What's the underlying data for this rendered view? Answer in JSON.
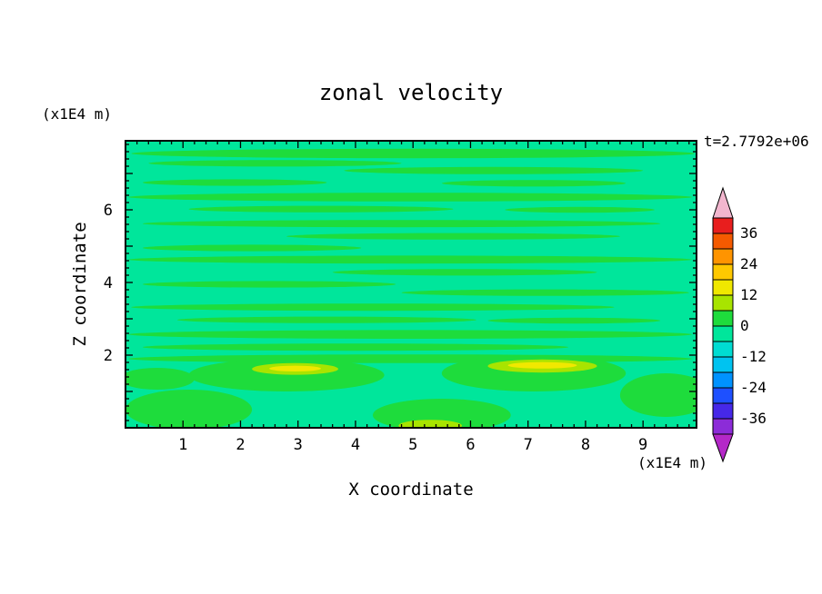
{
  "page": {
    "background": "#ffffff"
  },
  "chart_data": {
    "type": "heatmap",
    "title": "zonal velocity",
    "xlabel": "X coordinate",
    "ylabel": "Z coordinate",
    "x_axis_unit": "(x1E4 m)",
    "y_axis_unit": "(x1E4 m)",
    "time_label": "t=2.7792e+06",
    "xlim": [
      0,
      9.93
    ],
    "zlim": [
      0,
      7.9
    ],
    "x_ticks": [
      1,
      2,
      3,
      4,
      5,
      6,
      7,
      8,
      9
    ],
    "z_ticks": [
      2,
      4,
      6
    ],
    "minor_tick_step": 0.2,
    "grid": false,
    "frame_color": "#000000",
    "colorbar": {
      "position": "right",
      "label_values": [
        36,
        24,
        12,
        0,
        -12,
        -24,
        -36
      ],
      "segment_span": 6,
      "top_value": 42,
      "bottom_value": -42,
      "segments_top_to_bottom": [
        {
          "min": 36,
          "max": 42,
          "color": "#e81e1e"
        },
        {
          "min": 30,
          "max": 36,
          "color": "#f55a00"
        },
        {
          "min": 24,
          "max": 30,
          "color": "#ff9400"
        },
        {
          "min": 18,
          "max": 24,
          "color": "#ffc800"
        },
        {
          "min": 12,
          "max": 18,
          "color": "#f0e800"
        },
        {
          "min": 6,
          "max": 12,
          "color": "#a8e400"
        },
        {
          "min": 0,
          "max": 6,
          "color": "#1edc3c"
        },
        {
          "min": -6,
          "max": 0,
          "color": "#00e69b"
        },
        {
          "min": -12,
          "max": -6,
          "color": "#00dcd2"
        },
        {
          "min": -18,
          "max": -12,
          "color": "#00c3f0"
        },
        {
          "min": -24,
          "max": -18,
          "color": "#0092ff"
        },
        {
          "min": -30,
          "max": -24,
          "color": "#1e50ff"
        },
        {
          "min": -36,
          "max": -30,
          "color": "#4628e8"
        },
        {
          "min": -42,
          "max": -36,
          "color": "#8c2cd8"
        }
      ],
      "over_arrow_color": "#f2b6ce",
      "under_arrow_color": "#b428c8"
    },
    "field": {
      "description": "mostly near-zero zonal velocity: spring-green background (-6..0) with horizontal green streaks (0..6) and small yellow maxima (12..18) near z=1.6",
      "background_color": "#00e69b",
      "feature_colors": {
        "green": "#1edc3c",
        "yellow_green": "#a8e400",
        "yellow": "#f0e800"
      },
      "features": [
        [
          5.0,
          7.55,
          4.9,
          0.13,
          "green"
        ],
        [
          2.6,
          7.28,
          2.2,
          0.09,
          "green"
        ],
        [
          6.4,
          7.08,
          2.6,
          0.1,
          "green"
        ],
        [
          1.9,
          6.75,
          1.6,
          0.09,
          "green"
        ],
        [
          7.1,
          6.73,
          1.6,
          0.09,
          "green"
        ],
        [
          4.95,
          6.35,
          4.9,
          0.12,
          "green"
        ],
        [
          3.4,
          6.02,
          2.3,
          0.09,
          "green"
        ],
        [
          7.9,
          6.0,
          1.3,
          0.08,
          "green"
        ],
        [
          4.8,
          5.62,
          4.5,
          0.1,
          "green"
        ],
        [
          5.7,
          5.27,
          2.9,
          0.09,
          "green"
        ],
        [
          2.2,
          4.95,
          1.9,
          0.09,
          "green"
        ],
        [
          4.95,
          4.63,
          4.9,
          0.11,
          "green"
        ],
        [
          5.9,
          4.28,
          2.3,
          0.09,
          "green"
        ],
        [
          2.5,
          3.95,
          2.2,
          0.09,
          "green"
        ],
        [
          7.3,
          3.72,
          2.5,
          0.09,
          "green"
        ],
        [
          4.3,
          3.32,
          4.2,
          0.1,
          "green"
        ],
        [
          3.5,
          2.97,
          2.6,
          0.09,
          "green"
        ],
        [
          7.8,
          2.95,
          1.5,
          0.08,
          "green"
        ],
        [
          4.95,
          2.57,
          4.9,
          0.12,
          "green"
        ],
        [
          4.0,
          2.22,
          3.7,
          0.1,
          "green"
        ],
        [
          4.95,
          1.9,
          4.9,
          0.12,
          "green"
        ],
        [
          2.8,
          1.45,
          1.7,
          0.45,
          "green"
        ],
        [
          2.95,
          1.62,
          0.75,
          0.16,
          "yellow_green"
        ],
        [
          2.95,
          1.63,
          0.45,
          0.08,
          "yellow"
        ],
        [
          7.1,
          1.5,
          1.6,
          0.5,
          "green"
        ],
        [
          7.25,
          1.7,
          0.95,
          0.18,
          "yellow_green"
        ],
        [
          7.25,
          1.72,
          0.6,
          0.09,
          "yellow"
        ],
        [
          9.4,
          0.9,
          0.8,
          0.6,
          "green"
        ],
        [
          5.5,
          0.35,
          1.2,
          0.45,
          "green"
        ],
        [
          5.3,
          0.06,
          0.55,
          0.16,
          "yellow_green"
        ],
        [
          1.1,
          0.5,
          1.1,
          0.55,
          "green"
        ],
        [
          0.55,
          1.35,
          0.65,
          0.3,
          "green"
        ]
      ]
    }
  }
}
